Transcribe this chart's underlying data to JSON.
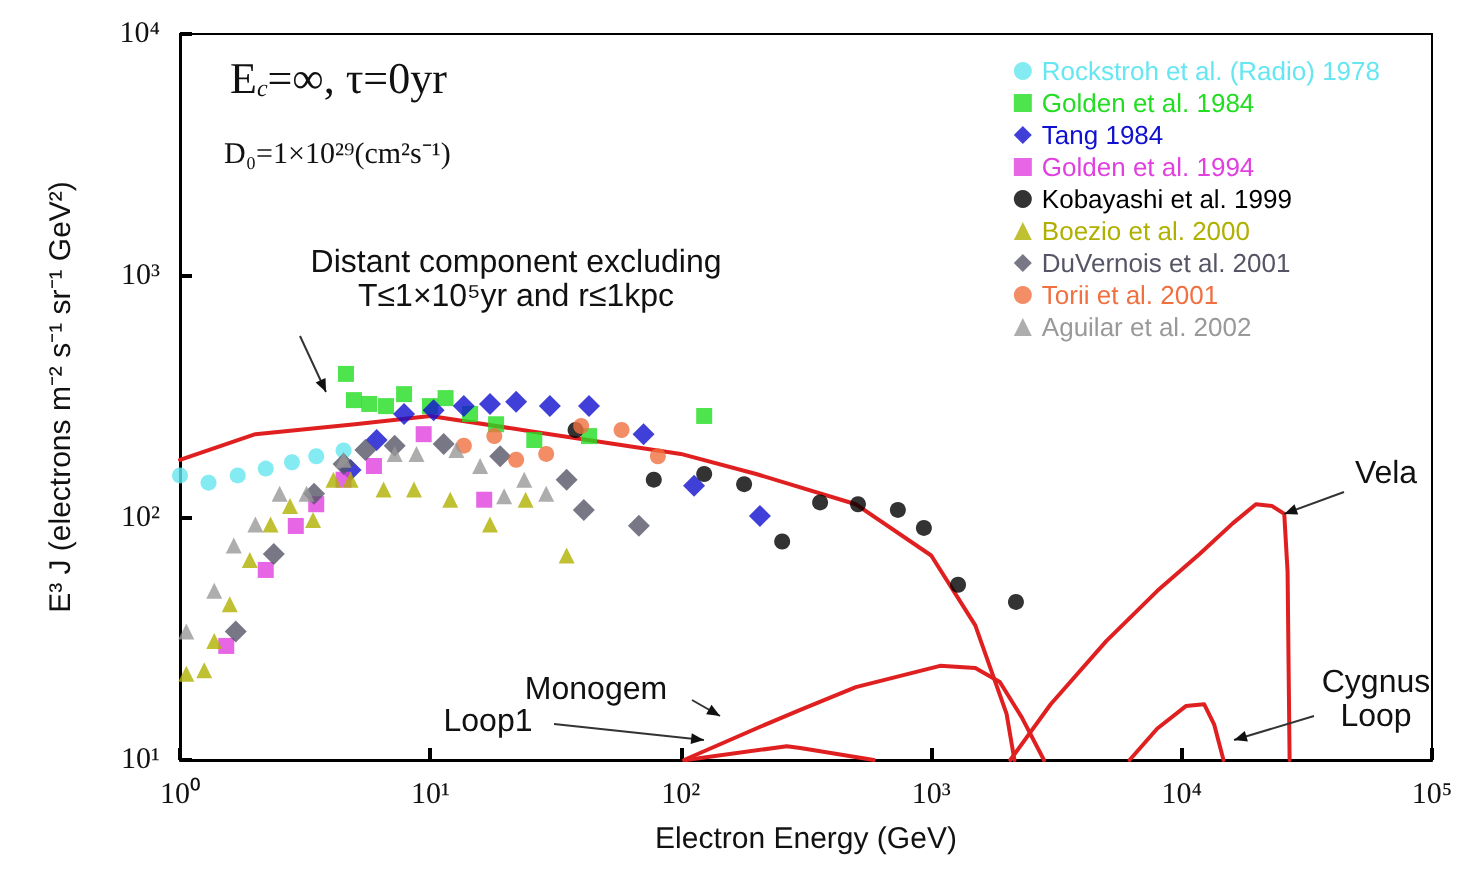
{
  "chart_data": {
    "type": "scatter",
    "xlabel": "Electron Energy (GeV)",
    "ylabel": "E³ J (electrons m⁻² s⁻¹ sr⁻¹ GeV²)",
    "log": "xy",
    "xlim": [
      1,
      100000
    ],
    "xticks": [
      {
        "value": 1,
        "label": "10⁰"
      },
      {
        "value": 10,
        "label": "10¹"
      },
      {
        "value": 100,
        "label": "10²"
      },
      {
        "value": 1000,
        "label": "10³"
      },
      {
        "value": 10000,
        "label": "10⁴"
      },
      {
        "value": 100000,
        "label": "10⁵"
      }
    ],
    "ylim": [
      10,
      10000
    ],
    "yticks": [
      {
        "value": 10,
        "label": "10¹"
      },
      {
        "value": 100,
        "label": "10²"
      },
      {
        "value": 1000,
        "label": "10³"
      },
      {
        "value": 10000,
        "label": "10⁴"
      }
    ],
    "grid": false,
    "legend": "top right",
    "annotations": [
      "E$_{c}$=∞, τ=0yr",
      "D₀=1×10²⁹(cm²s⁻¹)",
      "Distant component excluding\nT≤1×10⁵yr and r≤1kpc",
      "Monogem",
      "Loop1",
      {
        "text": "Vela",
        "x": 25700,
        "y": 104
      },
      "Cygnus\nLoop"
    ],
    "series": [
      {
        "name": "Rockstroh et al. (Radio) 1978",
        "color": "#66e6f0",
        "marker": "circle",
        "x": [
          1,
          1.3,
          1.7,
          2.2,
          2.8,
          3.5,
          4.5
        ],
        "values": [
          150,
          140,
          150,
          160,
          170,
          180,
          190
        ]
      },
      {
        "name": "Golden et al. 1984",
        "color": "#22dd22",
        "marker": "square",
        "x": [
          4.6,
          4.95,
          5.7,
          6.65,
          7.85,
          9.96,
          11.5,
          14.4,
          18.3,
          26,
          43,
          124
        ],
        "values": [
          394,
          307,
          296,
          290,
          325,
          290,
          313,
          269,
          244,
          210,
          218,
          264
        ]
      },
      {
        "name": "Tang 1984",
        "color": "#1010d0",
        "marker": "diamond",
        "x": [
          4.8,
          6.1,
          7.85,
          10.3,
          13.6,
          17.3,
          22,
          30,
          43,
          71,
          113,
          207
        ],
        "values": [
          158,
          210,
          269,
          279,
          290,
          296,
          302,
          290,
          290,
          222,
          136,
          102
        ]
      },
      {
        "name": "Golden et al. 1994",
        "color": "#e040e0",
        "marker": "square",
        "x": [
          1.53,
          2.2,
          2.9,
          3.5,
          4.5,
          5.95,
          9.4,
          16.4
        ],
        "values": [
          29.6,
          61,
          92.7,
          114,
          144,
          164,
          222,
          119
        ]
      },
      {
        "name": "Kobayashi et al. 1999",
        "color": "#000000",
        "marker": "circle",
        "x": [
          38,
          78,
          124,
          179,
          254,
          360,
          510,
          736,
          935,
          1280,
          2180
        ],
        "values": [
          231,
          144,
          152,
          138,
          80,
          116,
          114,
          108,
          91,
          53,
          45
        ]
      },
      {
        "name": "Boezio et al. 2000",
        "color": "#b0b000",
        "marker": "triangle",
        "x": [
          1.06,
          1.25,
          1.37,
          1.58,
          1.9,
          2.3,
          2.75,
          3.4,
          4.1,
          4.8,
          6.5,
          8.6,
          12,
          17.3,
          24,
          35
        ],
        "values": [
          22.7,
          23.5,
          31,
          44,
          67,
          94,
          112,
          98,
          144,
          144,
          131,
          131,
          119,
          94,
          119,
          70
        ]
      },
      {
        "name": "DuVernois et al. 2001",
        "color": "#555566",
        "marker": "diamond",
        "x": [
          1.67,
          2.37,
          3.43,
          4.5,
          5.5,
          7.2,
          11.3,
          19,
          35,
          41,
          68
        ],
        "values": [
          34,
          71,
          126,
          167,
          191,
          199,
          202,
          180,
          144,
          108,
          93
        ]
      },
      {
        "name": "Torii et al. 2001",
        "color": "#f07040",
        "marker": "circle",
        "x": [
          13.6,
          18,
          22,
          29,
          40,
          58,
          81
        ],
        "values": [
          199,
          218,
          174,
          184,
          240,
          231,
          180
        ]
      },
      {
        "name": "Aguilar et al. 2002",
        "color": "#999999",
        "marker": "triangle",
        "x": [
          1.06,
          1.37,
          1.64,
          2.0,
          2.5,
          3.2,
          4.5,
          7.2,
          8.8,
          12.7,
          15.8,
          19.7,
          23.7,
          29
        ],
        "values": [
          34,
          50,
          77,
          94,
          126,
          126,
          174,
          184,
          184,
          191,
          164,
          123,
          144,
          126
        ]
      },
      {
        "type": "line",
        "color": "#e02020",
        "marker": "none",
        "x": [
          1,
          2,
          5,
          10,
          30,
          100,
          200,
          500,
          1000,
          1500,
          2000,
          2150
        ],
        "values": [
          174,
          222,
          244,
          264,
          222,
          184,
          152,
          114,
          70,
          36,
          15.5,
          10
        ]
      },
      {
        "type": "line",
        "color": "#e02020",
        "marker": "none",
        "x": [
          103,
          200,
          300,
          500,
          1085,
          1500,
          1880,
          2300,
          2820
        ],
        "values": [
          10,
          13.5,
          16.1,
          20,
          24.5,
          24,
          21,
          15,
          10
        ]
      },
      {
        "type": "line",
        "color": "#e02020",
        "marker": "none",
        "x": [
          105,
          265,
          300,
          590
        ],
        "values": [
          10,
          11.4,
          11.2,
          10
        ]
      },
      {
        "type": "line",
        "color": "#e02020",
        "marker": "none",
        "x": [
          2070,
          3000,
          5000,
          8000,
          11800,
          16000,
          19800,
          23000,
          25700,
          26500,
          27000
        ],
        "values": [
          10,
          17,
          31,
          50,
          71,
          95,
          114,
          112,
          104,
          60,
          10
        ]
      },
      {
        "type": "line",
        "color": "#e02020",
        "marker": "none",
        "x": [
          6200,
          8000,
          10400,
          12300,
          13500,
          14700
        ],
        "values": [
          10,
          13.5,
          16.7,
          17,
          14,
          10
        ]
      }
    ]
  }
}
